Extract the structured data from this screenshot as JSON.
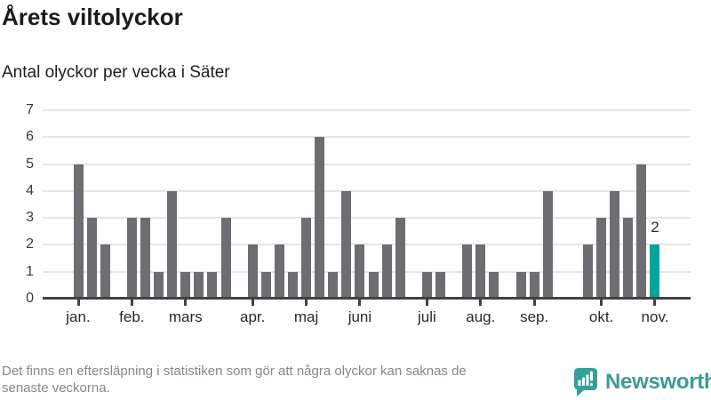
{
  "header": {
    "title": "Årets viltolyckor",
    "subtitle": "Antal olyckor per vecka i Säter"
  },
  "footer": {
    "note_lines": [
      "Det finns en eftersläpning i statistiken som gör att några olyckor kan saknas de",
      "senaste veckorna."
    ],
    "brand": "Newsworthy",
    "logo_icon": "bar-chart-speech-bubble-icon"
  },
  "colors": {
    "bar": "#6d6d72",
    "highlight": "#00a49c",
    "gridline": "#e5e5e5",
    "axis": "#424242",
    "brand_teal": "#3c9b96",
    "logo_teal": "#35a096",
    "footer_text": "#83878f",
    "title_text": "#1b1b19"
  },
  "chart_data": {
    "type": "bar",
    "title": "Årets viltolyckor",
    "subtitle": "Antal olyckor per vecka i Säter",
    "xlabel": "",
    "ylabel": "",
    "ylim": [
      0,
      7
    ],
    "yticks": [
      0,
      1,
      2,
      3,
      4,
      5,
      6,
      7
    ],
    "grid": true,
    "legend_position": "none",
    "x_unit": "vecka",
    "weekly_values": [
      5,
      3,
      2,
      0,
      3,
      3,
      1,
      4,
      1,
      1,
      1,
      3,
      0,
      2,
      1,
      2,
      1,
      3,
      6,
      1,
      4,
      2,
      1,
      2,
      3,
      0,
      1,
      1,
      0,
      2,
      2,
      1,
      0,
      1,
      1,
      4,
      0,
      0,
      2,
      3,
      4,
      3,
      5,
      2
    ],
    "month_ticks": [
      {
        "label": "jan.",
        "week_index": 0
      },
      {
        "label": "feb.",
        "week_index": 4
      },
      {
        "label": "mars",
        "week_index": 8
      },
      {
        "label": "apr.",
        "week_index": 13
      },
      {
        "label": "maj",
        "week_index": 17
      },
      {
        "label": "juni",
        "week_index": 21
      },
      {
        "label": "juli",
        "week_index": 26
      },
      {
        "label": "aug.",
        "week_index": 30
      },
      {
        "label": "sep.",
        "week_index": 34
      },
      {
        "label": "okt.",
        "week_index": 39
      },
      {
        "label": "nov.",
        "week_index": 43
      }
    ],
    "highlight": {
      "week_index": 43,
      "value_label": "2"
    }
  }
}
